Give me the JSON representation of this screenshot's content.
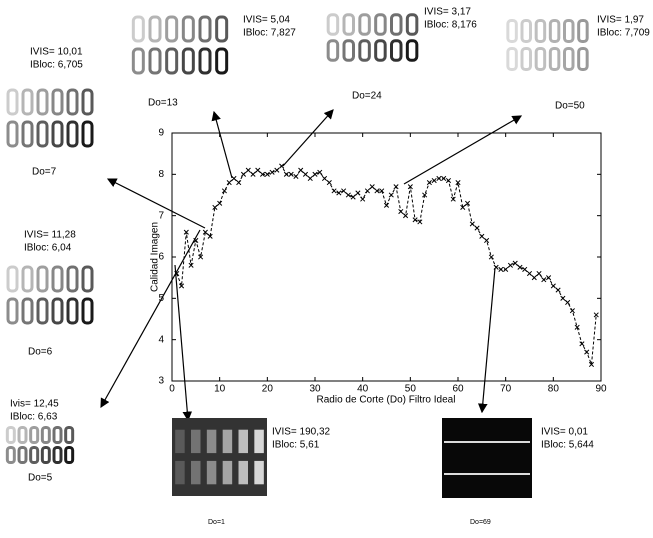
{
  "chart_data": {
    "type": "line",
    "xlabel": "Radio de Corte (Do) Filtro Ideal",
    "ylabel": "Calidad Imagen",
    "x": [
      1,
      2,
      3,
      4,
      5,
      6,
      7,
      8,
      9,
      10,
      11,
      12,
      13,
      14,
      15,
      16,
      17,
      18,
      19,
      20,
      21,
      22,
      23,
      24,
      25,
      26,
      27,
      28,
      29,
      30,
      31,
      32,
      33,
      34,
      35,
      36,
      37,
      38,
      39,
      40,
      41,
      42,
      43,
      44,
      45,
      46,
      47,
      48,
      49,
      50,
      51,
      52,
      53,
      54,
      55,
      56,
      57,
      58,
      59,
      60,
      61,
      62,
      63,
      64,
      65,
      66,
      67,
      68,
      69,
      70,
      71,
      72,
      73,
      74,
      75,
      76,
      77,
      78,
      79,
      80,
      81,
      82,
      83,
      84,
      85,
      86,
      87,
      88,
      89
    ],
    "series": [
      {
        "color": "#000000",
        "values": [
          5.6,
          5.3,
          6.6,
          5.8,
          6.4,
          6.0,
          6.6,
          6.5,
          7.2,
          7.3,
          7.6,
          7.8,
          7.9,
          7.8,
          8.0,
          8.1,
          8.0,
          8.1,
          8.0,
          8.0,
          8.05,
          8.1,
          8.2,
          8.0,
          8.0,
          7.95,
          8.1,
          8.0,
          7.9,
          8.0,
          8.05,
          7.9,
          7.8,
          7.6,
          7.55,
          7.6,
          7.5,
          7.45,
          7.55,
          7.4,
          7.6,
          7.7,
          7.6,
          7.6,
          7.25,
          7.5,
          7.7,
          7.1,
          7.0,
          7.7,
          6.9,
          6.85,
          7.5,
          7.8,
          7.85,
          7.9,
          7.9,
          7.85,
          7.4,
          7.8,
          7.2,
          7.3,
          6.8,
          6.7,
          6.5,
          6.4,
          6.0,
          5.75,
          5.7,
          5.7,
          5.8,
          5.85,
          5.75,
          5.7,
          5.6,
          5.5,
          5.6,
          5.45,
          5.5,
          5.3,
          5.2,
          5.0,
          4.9,
          4.7,
          4.3,
          3.9,
          3.7,
          3.4,
          4.6
        ]
      }
    ],
    "xlim": [
      0,
      90
    ],
    "xticks": [
      0,
      10,
      20,
      30,
      40,
      50,
      60,
      70,
      80,
      90
    ],
    "ylim": [
      3,
      9
    ],
    "yticks": [
      3,
      4,
      5,
      6,
      7,
      8,
      9
    ],
    "annotations": [
      {
        "ivis": "IVIS= 5,04",
        "ibloc": "IBloc: 7,827",
        "label": "Do=13"
      },
      {
        "ivis": "IVIS= 3,17",
        "ibloc": "IBloc: 8,176",
        "label": "Do=24"
      },
      {
        "ivis": "IVIS= 1,97",
        "ibloc": "IBloc: 7,709",
        "label": "Do=50"
      },
      {
        "ivis": "IVIS= 10,01",
        "ibloc": "IBloc: 6,705",
        "label": "Do=7"
      },
      {
        "ivis": "IVIS= 11,28",
        "ibloc": "IBloc: 6,04",
        "label": "Do=6"
      },
      {
        "ivis": "Ivis= 12,45",
        "ibloc": "IBloc: 6,63",
        "label": "Do=5"
      },
      {
        "ivis": "IVIS= 190,32",
        "ibloc": "IBloc: 5,61",
        "label": "Do=1"
      },
      {
        "ivis": "IVIS= 0,01",
        "ibloc": "IBloc: 5,644",
        "label": "Do=69"
      }
    ]
  }
}
